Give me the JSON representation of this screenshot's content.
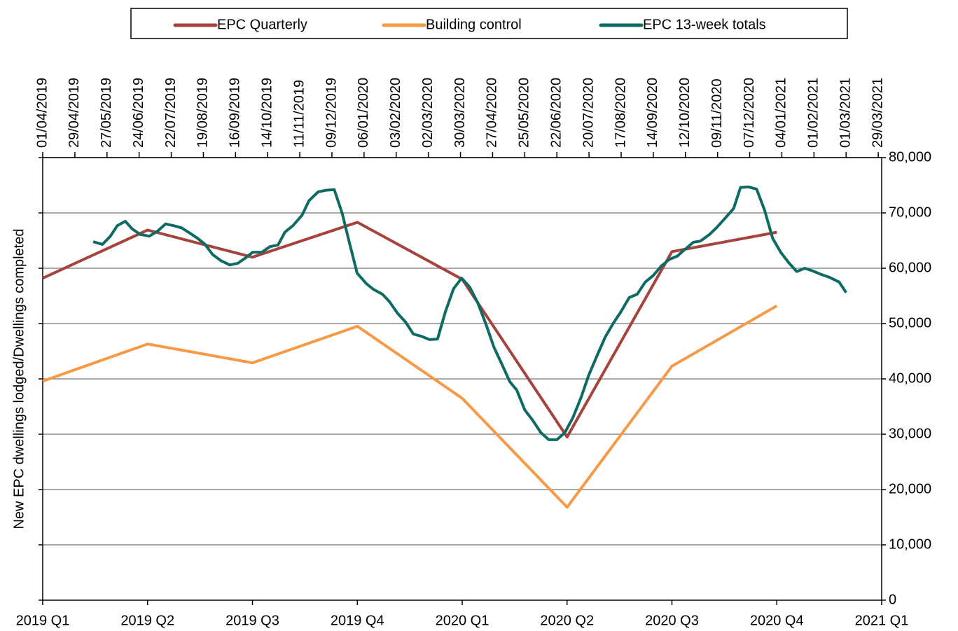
{
  "chart_data": {
    "type": "line",
    "ylabel": "New EPC dwellings lodged/Dwellings completed",
    "xlim": [
      0,
      8
    ],
    "xticks": [
      {
        "value": 0,
        "label": "2019 Q1"
      },
      {
        "value": 1,
        "label": "2019 Q2"
      },
      {
        "value": 2,
        "label": "2019 Q3"
      },
      {
        "value": 3,
        "label": "2019 Q4"
      },
      {
        "value": 4,
        "label": "2020 Q1"
      },
      {
        "value": 5,
        "label": "2020 Q2"
      },
      {
        "value": 6,
        "label": "2020 Q3"
      },
      {
        "value": 7,
        "label": "2020 Q4"
      },
      {
        "value": 8,
        "label": "2021 Q1"
      }
    ],
    "x2lim": [
      0,
      731
    ],
    "x2ticks": [
      {
        "value": 0,
        "label": "01/04/2019"
      },
      {
        "value": 28,
        "label": "29/04/2019"
      },
      {
        "value": 56,
        "label": "27/05/2019"
      },
      {
        "value": 84,
        "label": "24/06/2019"
      },
      {
        "value": 112,
        "label": "22/07/2019"
      },
      {
        "value": 140,
        "label": "19/08/2019"
      },
      {
        "value": 168,
        "label": "16/09/2019"
      },
      {
        "value": 196,
        "label": "14/10/2019"
      },
      {
        "value": 224,
        "label": "11/11/2019"
      },
      {
        "value": 252,
        "label": "09/12/2019"
      },
      {
        "value": 280,
        "label": "06/01/2020"
      },
      {
        "value": 308,
        "label": "03/02/2020"
      },
      {
        "value": 336,
        "label": "02/03/2020"
      },
      {
        "value": 364,
        "label": "30/03/2020"
      },
      {
        "value": 392,
        "label": "27/04/2020"
      },
      {
        "value": 420,
        "label": "25/05/2020"
      },
      {
        "value": 448,
        "label": "22/06/2020"
      },
      {
        "value": 476,
        "label": "20/07/2020"
      },
      {
        "value": 504,
        "label": "17/08/2020"
      },
      {
        "value": 532,
        "label": "14/09/2020"
      },
      {
        "value": 560,
        "label": "12/10/2020"
      },
      {
        "value": 588,
        "label": "09/11/2020"
      },
      {
        "value": 616,
        "label": "07/12/2020"
      },
      {
        "value": 644,
        "label": "04/01/2021"
      },
      {
        "value": 672,
        "label": "01/02/2021"
      },
      {
        "value": 700,
        "label": "01/03/2021"
      },
      {
        "value": 728,
        "label": "29/03/2021"
      }
    ],
    "ylim": [
      0,
      80000
    ],
    "yticks": [
      0,
      {
        "value": 10000,
        "label": "10,000"
      },
      {
        "value": 20000,
        "label": "20,000"
      },
      {
        "value": 30000,
        "label": "30,000"
      },
      {
        "value": 40000,
        "label": "40,000"
      },
      {
        "value": 50000,
        "label": "50,000"
      },
      {
        "value": 60000,
        "label": "60,000"
      },
      {
        "value": 70000,
        "label": "70,000"
      },
      {
        "value": 80000,
        "label": "80,000"
      }
    ],
    "grid": true,
    "legend": "top",
    "series": [
      {
        "name": "EPC Quarterly",
        "color": "#a5433c",
        "x": [
          0,
          1,
          2,
          3,
          4,
          5,
          6,
          7
        ],
        "values": [
          58200,
          66900,
          62000,
          68300,
          58000,
          29500,
          63000,
          66500
        ]
      },
      {
        "name": "Building control",
        "color": "#f79a46",
        "x": [
          0,
          1,
          2,
          3,
          4,
          5,
          6,
          7
        ],
        "values": [
          39600,
          46300,
          42900,
          49500,
          36500,
          16800,
          42300,
          53200
        ]
      },
      {
        "name": "EPC 13-week totals",
        "color": "#0e6b63",
        "xaxis": "x2",
        "x": [
          44,
          52,
          59,
          65,
          72,
          78,
          85,
          93,
          100,
          107,
          114,
          121,
          127,
          135,
          141,
          148,
          155,
          163,
          170,
          177,
          183,
          191,
          198,
          205,
          211,
          218,
          226,
          232,
          240,
          247,
          254,
          261,
          267,
          274,
          282,
          288,
          296,
          302,
          309,
          316,
          323,
          330,
          337,
          344,
          351,
          358,
          365,
          372,
          379,
          386,
          393,
          400,
          407,
          413,
          420,
          427,
          434,
          441,
          448,
          455,
          462,
          469,
          476,
          483,
          490,
          497,
          504,
          511,
          518,
          525,
          532,
          539,
          546,
          553,
          559,
          567,
          573,
          581,
          587,
          594,
          602,
          608,
          615,
          622,
          629,
          636,
          643,
          650,
          657,
          664,
          671,
          678,
          685,
          694,
          700
        ],
        "values": [
          64800,
          64300,
          65800,
          67700,
          68500,
          67100,
          66100,
          65800,
          66700,
          68000,
          67700,
          67300,
          66500,
          65400,
          64400,
          62500,
          61400,
          60600,
          60900,
          61900,
          62900,
          62900,
          63900,
          64200,
          66500,
          67700,
          69600,
          72200,
          73800,
          74100,
          74200,
          69900,
          64800,
          59100,
          57200,
          56200,
          55300,
          54000,
          51900,
          50300,
          48100,
          47700,
          47100,
          47200,
          52200,
          56300,
          58200,
          56600,
          53800,
          50000,
          45800,
          42700,
          39500,
          38000,
          34400,
          32500,
          30300,
          29000,
          29000,
          30300,
          33000,
          36600,
          40800,
          44200,
          47500,
          50000,
          52200,
          54700,
          55300,
          57500,
          58700,
          60400,
          61600,
          62200,
          63300,
          64700,
          64900,
          66100,
          67300,
          68900,
          70800,
          74600,
          74700,
          74300,
          70500,
          65400,
          62900,
          61000,
          59400,
          60000,
          59500,
          58900,
          58400,
          57500,
          55600
        ]
      }
    ]
  }
}
